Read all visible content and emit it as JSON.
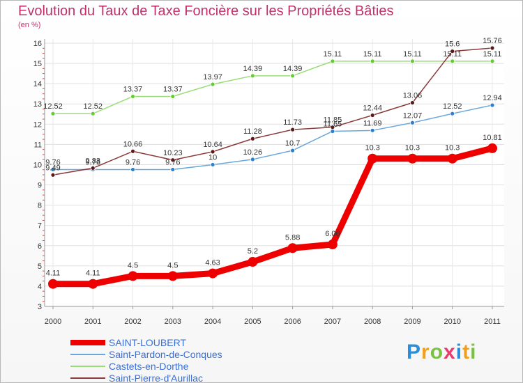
{
  "header": {
    "title": "Evolution du Taux de Taxe Foncière sur les Propriétés Bâties",
    "unit": "(en %)"
  },
  "brand": {
    "letters": [
      "P",
      "r",
      "o",
      "x",
      "i",
      "t",
      "i"
    ],
    "colors": [
      "#2a8fd8",
      "#f0a020",
      "#7ac043",
      "#e83c6c",
      "#2a8fd8",
      "#f0a020",
      "#7ac043"
    ]
  },
  "chart_data": {
    "type": "line",
    "title": "Evolution du Taux de Taxe Foncière sur les Propriétés Bâties",
    "ylabel": "(en %)",
    "xlabel": "",
    "x": [
      "2000",
      "2001",
      "2002",
      "2003",
      "2004",
      "2005",
      "2006",
      "2007",
      "2008",
      "2009",
      "2010",
      "2011"
    ],
    "ylim": [
      3,
      16
    ],
    "yticks": [
      3,
      4,
      5,
      6,
      7,
      8,
      9,
      10,
      11,
      12,
      13,
      14,
      15,
      16
    ],
    "grid": true,
    "legend_position": "bottom-left",
    "series": [
      {
        "name": "SAINT-LOUBERT",
        "color": "#ee0000",
        "marker_color": "#ee0000",
        "emphasis": true,
        "values": [
          4.11,
          4.11,
          4.5,
          4.5,
          4.63,
          5.2,
          5.88,
          6.06,
          10.3,
          10.3,
          10.3,
          10.81
        ],
        "labels": [
          "4.11",
          "4.11",
          "4.5",
          "4.5",
          "4.63",
          "5.2",
          "5.88",
          "6.06",
          "10.3",
          "10.3",
          "10.3",
          "10.81"
        ]
      },
      {
        "name": "Saint-Pardon-de-Conques",
        "color": "#6aa7dc",
        "marker_color": "#2f7fcc",
        "emphasis": false,
        "values": [
          9.76,
          9.76,
          9.76,
          9.76,
          10,
          10.26,
          10.7,
          11.65,
          11.69,
          12.07,
          12.52,
          12.94
        ],
        "labels": [
          "9.76",
          "9.76",
          "9.76",
          "9.76",
          "10",
          "10.26",
          "10.7",
          "11.65",
          "11.69",
          "12.07",
          "12.52",
          "12.94"
        ]
      },
      {
        "name": "Castets-en-Dorthe",
        "color": "#99dd77",
        "marker_color": "#66cc33",
        "emphasis": false,
        "values": [
          12.52,
          12.52,
          13.37,
          13.37,
          13.97,
          14.39,
          14.39,
          15.11,
          15.11,
          15.11,
          15.11,
          15.11
        ],
        "labels": [
          "12.52",
          "12.52",
          "13.37",
          "13.37",
          "13.97",
          "14.39",
          "14.39",
          "15.11",
          "15.11",
          "15.11",
          "15.11",
          "15.11"
        ]
      },
      {
        "name": "Saint-Pierre-d'Aurillac",
        "color": "#8a3a3a",
        "marker_color": "#5a1a1a",
        "emphasis": false,
        "values": [
          9.49,
          9.83,
          10.66,
          10.23,
          10.64,
          11.28,
          11.73,
          11.85,
          12.44,
          13.06,
          15.6,
          15.76
        ],
        "labels": [
          "9.49",
          "9.83",
          "10.66",
          "10.23",
          "10.64",
          "11.28",
          "11.73",
          "11.85",
          "12.44",
          "13.06",
          "15.6",
          "15.76"
        ]
      }
    ]
  }
}
